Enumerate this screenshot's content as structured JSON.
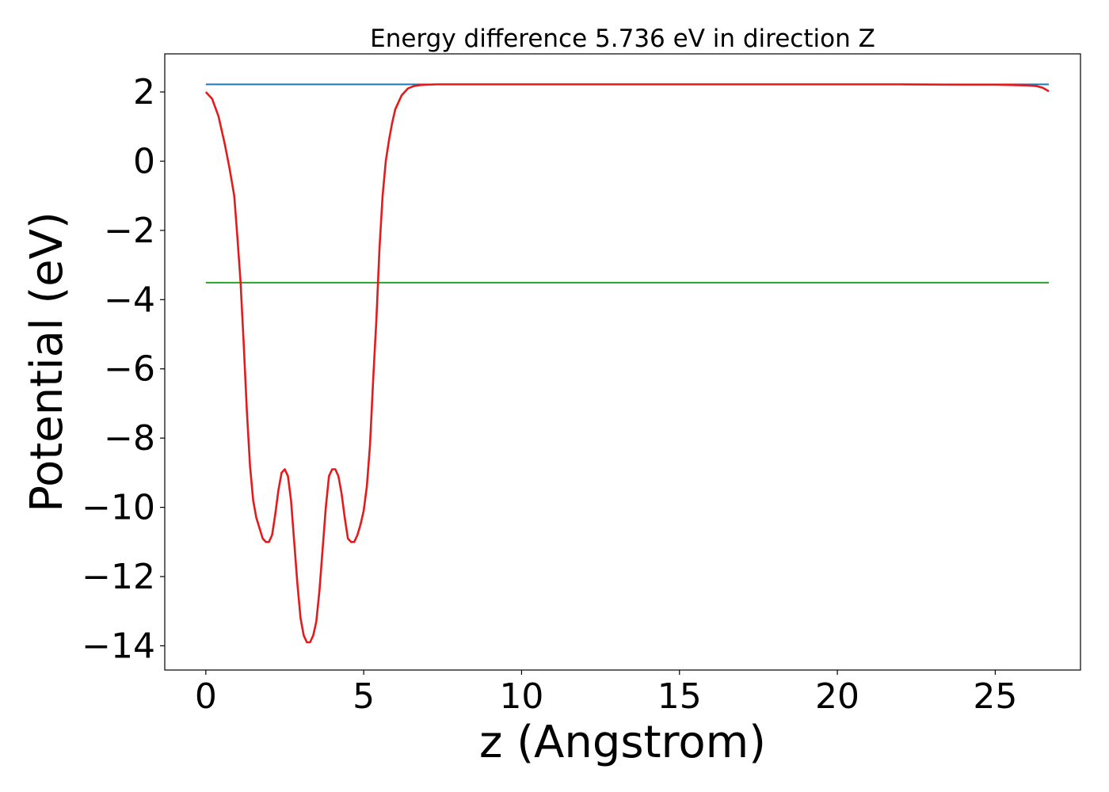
{
  "chart_data": {
    "type": "line",
    "title": "Energy difference 5.736 eV in direction Z",
    "xlabel": "z (Angstrom)",
    "ylabel": "Potential (eV)",
    "xlim": [
      -1.3,
      27.7
    ],
    "ylim": [
      -14.7,
      3.1
    ],
    "xticks": [
      0,
      5,
      10,
      15,
      20,
      25
    ],
    "xtick_labels": [
      "0",
      "5",
      "10",
      "15",
      "20",
      "25"
    ],
    "yticks": [
      2,
      0,
      -2,
      -4,
      -6,
      -8,
      -10,
      -12,
      -14
    ],
    "ytick_labels": [
      "2",
      "0",
      "−2",
      "−4",
      "−6",
      "−8",
      "−10",
      "−12",
      "−14"
    ],
    "grid": false,
    "legend": false,
    "series": [
      {
        "color": "#1f77b4",
        "x": [
          0,
          26.7
        ],
        "y": [
          2.22,
          2.22
        ]
      },
      {
        "color": "#2ca02c",
        "x": [
          0,
          26.7
        ],
        "y": [
          -3.51,
          -3.51
        ]
      },
      {
        "color": "#e41a1c",
        "x": [
          0,
          0.2,
          0.4,
          0.6,
          0.75,
          0.9,
          1.0,
          1.1,
          1.2,
          1.3,
          1.4,
          1.5,
          1.6,
          1.7,
          1.8,
          1.9,
          2.0,
          2.1,
          2.2,
          2.3,
          2.4,
          2.5,
          2.6,
          2.7,
          2.8,
          2.9,
          3.0,
          3.1,
          3.2,
          3.3,
          3.4,
          3.5,
          3.6,
          3.7,
          3.8,
          3.9,
          4.0,
          4.1,
          4.2,
          4.3,
          4.4,
          4.5,
          4.6,
          4.7,
          4.8,
          4.9,
          5.0,
          5.1,
          5.2,
          5.3,
          5.4,
          5.5,
          5.6,
          5.7,
          5.8,
          5.9,
          6.0,
          6.2,
          6.4,
          6.6,
          6.8,
          7.0,
          7.3,
          7.6,
          8.0,
          9.0,
          10.0,
          12.0,
          14.0,
          16.0,
          18.0,
          20.0,
          22.0,
          24.0,
          25.0,
          25.5,
          26.0,
          26.3,
          26.5,
          26.7
        ],
        "y": [
          2.0,
          1.8,
          1.3,
          0.5,
          -0.2,
          -1.0,
          -2.2,
          -3.5,
          -5.3,
          -7.2,
          -8.8,
          -9.8,
          -10.3,
          -10.6,
          -10.9,
          -11.0,
          -11.0,
          -10.8,
          -10.2,
          -9.5,
          -9.0,
          -8.9,
          -9.1,
          -9.8,
          -11.0,
          -12.2,
          -13.2,
          -13.7,
          -13.9,
          -13.9,
          -13.7,
          -13.3,
          -12.4,
          -11.2,
          -10.0,
          -9.1,
          -8.9,
          -8.9,
          -9.1,
          -9.6,
          -10.3,
          -10.9,
          -11.0,
          -11.0,
          -10.8,
          -10.5,
          -10.1,
          -9.4,
          -8.2,
          -6.3,
          -4.6,
          -2.5,
          -1.0,
          0.0,
          0.6,
          1.1,
          1.5,
          1.9,
          2.1,
          2.17,
          2.2,
          2.21,
          2.22,
          2.22,
          2.22,
          2.22,
          2.22,
          2.22,
          2.22,
          2.22,
          2.22,
          2.22,
          2.22,
          2.21,
          2.21,
          2.2,
          2.19,
          2.17,
          2.12,
          2.02
        ]
      }
    ]
  }
}
